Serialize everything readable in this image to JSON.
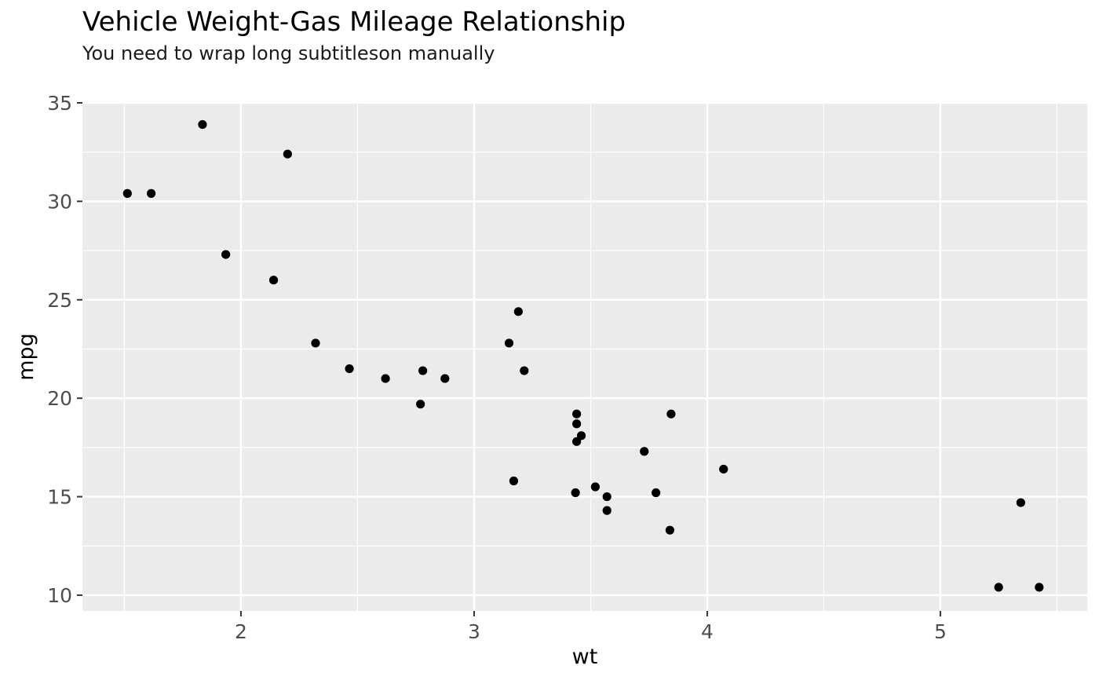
{
  "chart_data": {
    "type": "scatter",
    "title": "Vehicle Weight-Gas Mileage Relationship",
    "subtitle": "You need to wrap long subtitleson manually",
    "xlabel": "wt",
    "ylabel": "mpg",
    "xlim": [
      1.32,
      5.63
    ],
    "ylim": [
      9.2,
      35.0
    ],
    "x_ticks": [
      2,
      3,
      4,
      5
    ],
    "y_ticks": [
      10,
      15,
      20,
      25,
      30,
      35
    ],
    "grid": true,
    "points_color": "#000000",
    "panel_color": "#ebebeb",
    "points": [
      {
        "x": 2.62,
        "y": 21.0
      },
      {
        "x": 2.875,
        "y": 21.0
      },
      {
        "x": 2.32,
        "y": 22.8
      },
      {
        "x": 3.215,
        "y": 21.4
      },
      {
        "x": 3.44,
        "y": 18.7
      },
      {
        "x": 3.46,
        "y": 18.1
      },
      {
        "x": 3.57,
        "y": 14.3
      },
      {
        "x": 3.19,
        "y": 24.4
      },
      {
        "x": 3.15,
        "y": 22.8
      },
      {
        "x": 3.44,
        "y": 19.2
      },
      {
        "x": 3.44,
        "y": 17.8
      },
      {
        "x": 4.07,
        "y": 16.4
      },
      {
        "x": 3.73,
        "y": 17.3
      },
      {
        "x": 3.78,
        "y": 15.2
      },
      {
        "x": 5.25,
        "y": 10.4
      },
      {
        "x": 5.424,
        "y": 10.4
      },
      {
        "x": 5.345,
        "y": 14.7
      },
      {
        "x": 2.2,
        "y": 32.4
      },
      {
        "x": 1.615,
        "y": 30.4
      },
      {
        "x": 1.835,
        "y": 33.9
      },
      {
        "x": 2.465,
        "y": 21.5
      },
      {
        "x": 3.52,
        "y": 15.5
      },
      {
        "x": 3.435,
        "y": 15.2
      },
      {
        "x": 3.84,
        "y": 13.3
      },
      {
        "x": 3.845,
        "y": 19.2
      },
      {
        "x": 1.935,
        "y": 27.3
      },
      {
        "x": 2.14,
        "y": 26.0
      },
      {
        "x": 1.513,
        "y": 30.4
      },
      {
        "x": 3.17,
        "y": 15.8
      },
      {
        "x": 2.77,
        "y": 19.7
      },
      {
        "x": 3.57,
        "y": 15.0
      },
      {
        "x": 2.78,
        "y": 21.4
      }
    ]
  }
}
